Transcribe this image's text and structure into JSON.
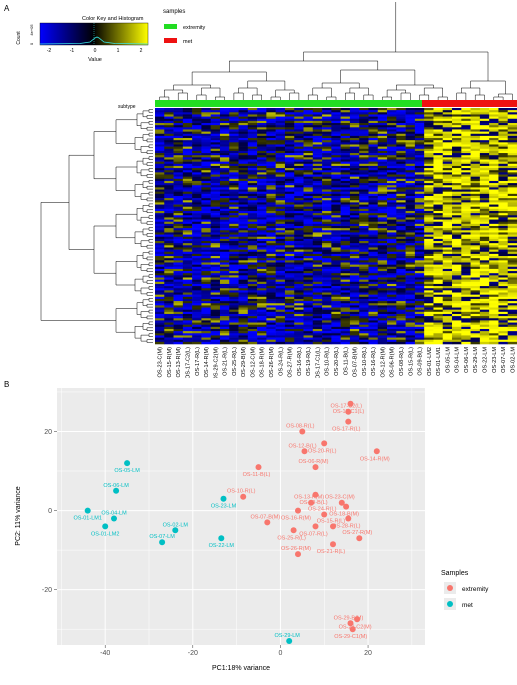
{
  "panelA": {
    "label": "A",
    "color_key": {
      "title": "Color Key and Histogram",
      "ylabel": "Count",
      "y_ticks": [
        "0",
        "4e+05"
      ],
      "x_ticks": [
        "-2",
        "-1",
        "0",
        "1",
        "2"
      ],
      "xlabel": "Value",
      "colors": [
        "#0000ff",
        "#000000",
        "#ffff00"
      ]
    },
    "legend": {
      "title": "samples",
      "items": [
        {
          "label": "extremity",
          "color": "#22dd22"
        },
        {
          "label": "met",
          "color": "#ee1111"
        }
      ]
    },
    "subtype_label": "subtype",
    "columns": [
      "OS-23-C(M)",
      "OS-15-R(M)",
      "OS-13-R(M)",
      "OS-17-C2(L)",
      "OS-17-R(L)",
      "OS-14-R(M)",
      "OS-29-C2(M)",
      "OS-21-R(L)",
      "OS-25-R(L)",
      "OS-29-B(M)",
      "OS-12-C(M)",
      "OS-18-R(M)",
      "OS-26-R(M)",
      "OS-24-R(L)",
      "OS-27-R(M)",
      "OS-16-R(L)",
      "OS-19-R(L)",
      "OS-17-C1(L)",
      "OS-10-R(L)",
      "OS-20-R(L)",
      "OS-11-B(L)",
      "OS-07-B(M)",
      "OS-10-R(L)",
      "OS-16-R(L)",
      "OS-12-R(M)",
      "OS-06-R(M)",
      "OS-08-R(L)",
      "OS-15-R(L)",
      "OS-09-B(L)",
      "OS-01-LM2",
      "OS-01-LM1",
      "OS-05-LM",
      "OS-04-LM",
      "OS-06-LM",
      "OS-29-LM",
      "OS-22-LM",
      "OS-23-LM",
      "OS-07-LM",
      "OS-02-LM"
    ],
    "n_extremity": 29,
    "n_met": 10
  },
  "panelB": {
    "label": "B",
    "xlabel": "PC1:18% variance",
    "ylabel": "PC2: 11% variance",
    "x_ticks": [
      -40,
      -20,
      0,
      20
    ],
    "y_ticks": [
      -20,
      0,
      20
    ],
    "xlim": [
      -51,
      33
    ],
    "ylim": [
      -34,
      31
    ],
    "legend_title": "Samples",
    "legend": [
      {
        "label": "extremity",
        "color": "#f8766d"
      },
      {
        "label": "met",
        "color": "#00bfc4"
      }
    ]
  },
  "chart_data": {
    "type": "scatter",
    "xlabel": "PC1:18% variance",
    "ylabel": "PC2: 11% variance",
    "xlim": [
      -51,
      33
    ],
    "ylim": [
      -34,
      31
    ],
    "grid": true,
    "legend_placement": "right",
    "series": [
      {
        "name": "extremity",
        "color": "#f8766d",
        "points": [
          {
            "label": "OS-17-C1(L)",
            "x": 16,
            "y": 27
          },
          {
            "label": "OS-17-C2(L)",
            "x": 15.5,
            "y": 25
          },
          {
            "label": "OS-17-R(L)",
            "x": 15.5,
            "y": 22.5
          },
          {
            "label": "OS-08-R(L)",
            "x": 5,
            "y": 20
          },
          {
            "label": "OS-20-R(L)",
            "x": 10,
            "y": 17
          },
          {
            "label": "OS-12-B(L)",
            "x": 5.5,
            "y": 15
          },
          {
            "label": "OS-14-R(M)",
            "x": 22,
            "y": 15
          },
          {
            "label": "OS-06-R(M)",
            "x": 8,
            "y": 11
          },
          {
            "label": "OS-11-B(L)",
            "x": -5,
            "y": 11
          },
          {
            "label": "OS-10-R(L)",
            "x": -8.5,
            "y": 3.5
          },
          {
            "label": "OS-09-B(L)",
            "x": 8,
            "y": 4
          },
          {
            "label": "OS-23-C(M)",
            "x": 14,
            "y": 2
          },
          {
            "label": "OS-18-B(M)",
            "x": 15,
            "y": 1
          },
          {
            "label": "OS-13-R(M)",
            "x": 7,
            "y": 2
          },
          {
            "label": "OS-16-R(M)",
            "x": 4,
            "y": 0
          },
          {
            "label": "OS-24-R(L)",
            "x": 10,
            "y": -1
          },
          {
            "label": "OS-28-R(L)",
            "x": 15.5,
            "y": -2
          },
          {
            "label": "OS-07-B(M)",
            "x": -3,
            "y": -3
          },
          {
            "label": "OS-07-R(L)",
            "x": 8,
            "y": -4
          },
          {
            "label": "OS-15-R(L)",
            "x": 12,
            "y": -4
          },
          {
            "label": "OS-25-R(L)",
            "x": 3,
            "y": -5
          },
          {
            "label": "OS-27-R(M)",
            "x": 18,
            "y": -7
          },
          {
            "label": "OS-21-R(L)",
            "x": 12,
            "y": -8.5
          },
          {
            "label": "OS-26-R(M)",
            "x": 4,
            "y": -11
          },
          {
            "label": "OS-29-C2(M)",
            "x": 17.5,
            "y": -27.5
          },
          {
            "label": "OS-29-B(M)",
            "x": 16,
            "y": -28.5
          },
          {
            "label": "OS-29-C1(M)",
            "x": 16.5,
            "y": -30
          }
        ]
      },
      {
        "name": "met",
        "color": "#00bfc4",
        "points": [
          {
            "label": "OS-05-LM",
            "x": -35,
            "y": 12
          },
          {
            "label": "OS-06-LM",
            "x": -37.5,
            "y": 5
          },
          {
            "label": "OS-01-LM1",
            "x": -44,
            "y": 0
          },
          {
            "label": "OS-04-LM",
            "x": -38,
            "y": -2
          },
          {
            "label": "OS-01-LM2",
            "x": -40,
            "y": -4
          },
          {
            "label": "OS-02-LM",
            "x": -24,
            "y": -5
          },
          {
            "label": "OS-22-LM",
            "x": -13.5,
            "y": -7
          },
          {
            "label": "OS-07-LM",
            "x": -27,
            "y": -8
          },
          {
            "label": "OS-23-LM",
            "x": -13,
            "y": 3
          },
          {
            "label": "OS-29-LM",
            "x": 2,
            "y": -33
          }
        ]
      }
    ]
  }
}
